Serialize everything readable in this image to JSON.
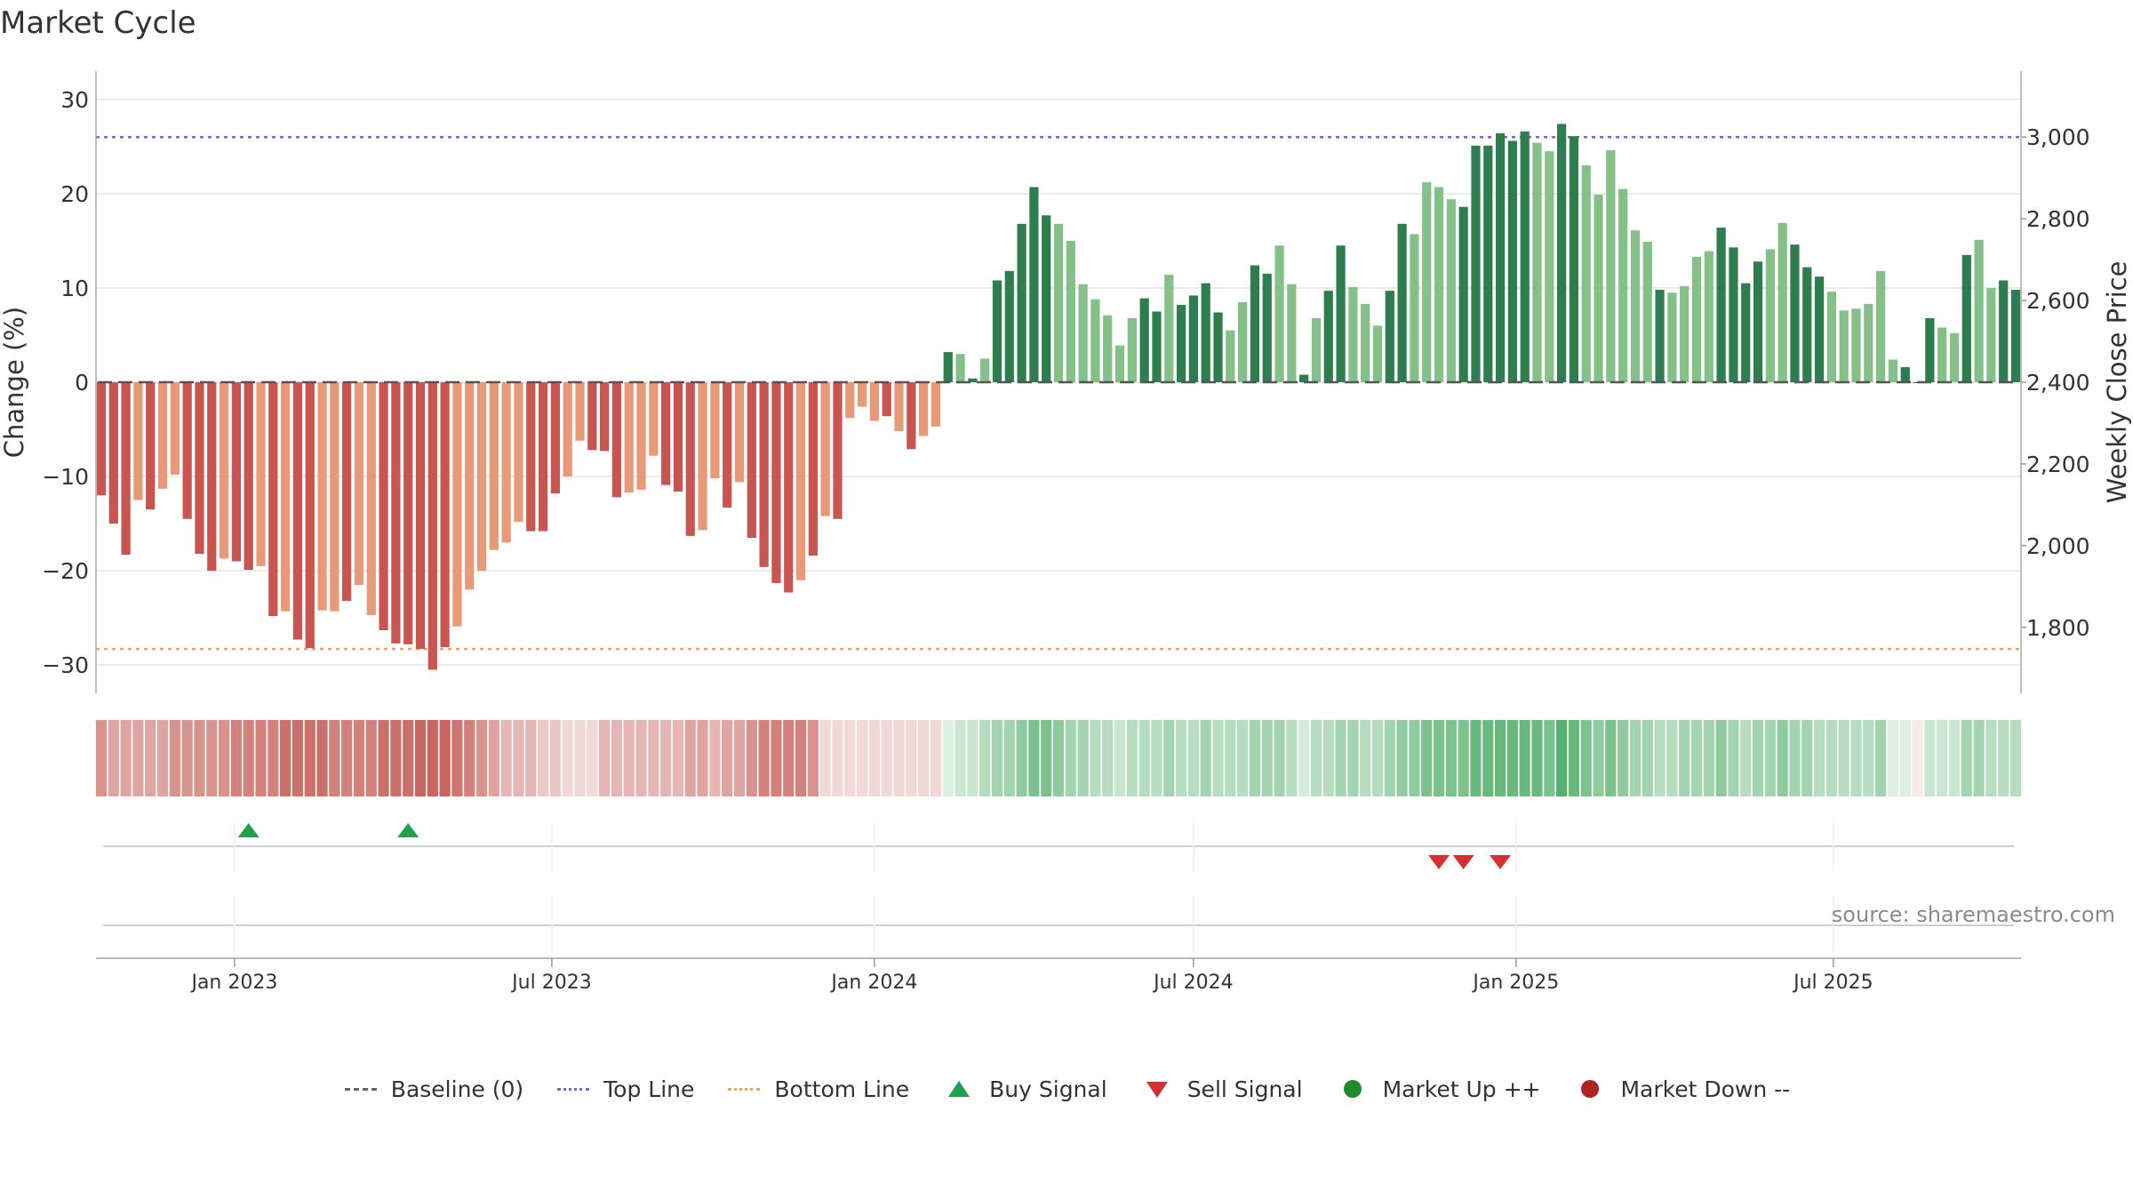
{
  "title": "Market Cycle",
  "source": "source: sharemaestro.com",
  "colors": {
    "red_dark": "#c8554f",
    "red_light": "#e89a78",
    "green_dark": "#2e7d4f",
    "green_light": "#84c088",
    "top_line": "#8e5bd6",
    "bottom_line": "#f0a060",
    "buy": "#1fa04a",
    "sell": "#d63030",
    "market_up": "#1f8a2e",
    "market_down": "#b02323",
    "baseline": "#555555",
    "grid": "#e6e6e6"
  },
  "legend": {
    "baseline": "Baseline (0)",
    "top_line": "Top Line",
    "bottom_line": "Bottom Line",
    "buy": "Buy Signal",
    "sell": "Sell Signal",
    "market_up": "Market Up ++",
    "market_down": "Market Down --"
  },
  "chart_data": {
    "type": "bar",
    "title": "Market Cycle",
    "ylabel": "Change (%)",
    "y2label": "Weekly Close Price",
    "ylim": [
      -33,
      33
    ],
    "yticks": [
      30,
      20,
      10,
      0,
      -10,
      -20,
      -30
    ],
    "ytick_labels": [
      "30",
      "20",
      "10",
      "0",
      "−10",
      "−20",
      "−30"
    ],
    "y2ticks": [
      3000,
      2800,
      2600,
      2400,
      2200,
      2000,
      1800
    ],
    "y2tick_labels": [
      "3,000",
      "2,800",
      "2,600",
      "2,400",
      "2,200",
      "2,000",
      "1,800"
    ],
    "top_line": 26,
    "bottom_line": -28.3,
    "x_start": "2022-10-17",
    "week_days": 7,
    "x_end": "2025-09-01",
    "xticks": [
      "2023-01-01",
      "2023-07-01",
      "2024-01-01",
      "2024-07-01",
      "2025-01-01",
      "2025-07-01"
    ],
    "xtick_labels": [
      "Jan 2023",
      "Jul 2023",
      "Jan 2024",
      "Jul 2024",
      "Jan 2025",
      "Jul 2025"
    ],
    "values": [
      -12,
      -15,
      -18.3,
      -12.5,
      -13.5,
      -11.3,
      -9.8,
      -14.5,
      -18.2,
      -20,
      -18.7,
      -19,
      -19.9,
      -19.5,
      -24.8,
      -24.3,
      -27.3,
      -28.2,
      -24.2,
      -24.3,
      -23.2,
      -21.5,
      -24.7,
      -26.3,
      -27.7,
      -27.8,
      -28.3,
      -30.5,
      -28.1,
      -25.9,
      -22,
      -20,
      -17.8,
      -17,
      -14.8,
      -15.8,
      -15.8,
      -11.8,
      -10,
      -6.2,
      -7.2,
      -7.3,
      -12.2,
      -11.7,
      -11.4,
      -7.8,
      -10.9,
      -11.6,
      -16.3,
      -15.7,
      -10.2,
      -13.3,
      -10.6,
      -16.5,
      -19.6,
      -21.3,
      -22.3,
      -21,
      -18.4,
      -14.2,
      -14.5,
      -3.8,
      -2.6,
      -4.1,
      -3.6,
      -5.2,
      -7.1,
      -5.7,
      -4.7,
      3.2,
      3,
      0.4,
      2.5,
      10.8,
      11.8,
      16.8,
      20.7,
      17.7,
      16.8,
      15,
      10.4,
      8.8,
      7.1,
      3.9,
      6.8,
      8.9,
      7.5,
      11.4,
      8.2,
      9.2,
      10.5,
      7.4,
      5.5,
      8.5,
      12.4,
      11.5,
      14.5,
      10.4,
      0.8,
      6.8,
      9.7,
      14.5,
      10.1,
      8.3,
      6,
      9.7,
      16.8,
      15.7,
      21.2,
      20.7,
      19.4,
      18.6,
      25.1,
      25.1,
      26.4,
      25.6,
      26.6,
      25.4,
      24.5,
      27.4,
      26.1,
      23,
      19.9,
      24.6,
      20.5,
      16.1,
      14.9,
      9.8,
      9.5,
      10.2,
      13.3,
      13.9,
      16.4,
      14.3,
      10.5,
      12.8,
      14.1,
      16.9,
      14.6,
      12.2,
      11.2,
      9.6,
      7.6,
      7.8,
      8.3,
      11.8,
      2.4,
      1.6,
      0,
      6.8,
      5.8,
      5.2,
      13.5,
      15.1,
      10,
      10.8,
      9.8
    ],
    "bar_shades": "DDDLDLLDDDLDDLDLDDLLDLLDDDDDDLLLLLLDDDLLDDDLLLDDDLLDLDDDDLDLDLLLDLDLLDLDLDDDDDLLLLLLLDDLDDDDLLDDLLDLDDLLLDDLLLLDDDDDDLLDDLLLLLLDLLLLDDDDLLDDDLLLLLLDDDLLDLLDDDLL",
    "heatmap": [
      -0.62,
      -0.52,
      -0.52,
      -0.52,
      -0.52,
      -0.52,
      -0.62,
      -0.62,
      -0.62,
      -0.62,
      -0.62,
      -0.72,
      -0.72,
      -0.72,
      -0.72,
      -0.82,
      -0.82,
      -0.82,
      -0.82,
      -0.72,
      -0.72,
      -0.72,
      -0.72,
      -0.82,
      -0.82,
      -0.82,
      -0.88,
      -0.88,
      -0.88,
      -0.78,
      -0.72,
      -0.62,
      -0.52,
      -0.42,
      -0.42,
      -0.42,
      -0.32,
      -0.32,
      -0.22,
      -0.22,
      -0.22,
      -0.42,
      -0.42,
      -0.42,
      -0.42,
      -0.42,
      -0.42,
      -0.42,
      -0.52,
      -0.52,
      -0.42,
      -0.52,
      -0.52,
      -0.62,
      -0.72,
      -0.72,
      -0.72,
      -0.72,
      -0.62,
      -0.22,
      -0.22,
      -0.22,
      -0.22,
      -0.22,
      -0.22,
      -0.22,
      -0.22,
      -0.22,
      -0.22,
      0.18,
      0.28,
      0.28,
      0.38,
      0.48,
      0.48,
      0.58,
      0.68,
      0.68,
      0.58,
      0.48,
      0.48,
      0.38,
      0.38,
      0.28,
      0.38,
      0.38,
      0.38,
      0.48,
      0.38,
      0.38,
      0.48,
      0.38,
      0.38,
      0.38,
      0.48,
      0.48,
      0.48,
      0.38,
      0.22,
      0.38,
      0.38,
      0.48,
      0.48,
      0.38,
      0.38,
      0.48,
      0.58,
      0.58,
      0.68,
      0.68,
      0.68,
      0.68,
      0.78,
      0.78,
      0.78,
      0.78,
      0.78,
      0.78,
      0.68,
      0.88,
      0.78,
      0.68,
      0.58,
      0.68,
      0.58,
      0.48,
      0.48,
      0.38,
      0.38,
      0.48,
      0.48,
      0.48,
      0.58,
      0.48,
      0.38,
      0.48,
      0.48,
      0.58,
      0.48,
      0.48,
      0.38,
      0.38,
      0.38,
      0.38,
      0.38,
      0.48,
      0.18,
      0.18,
      -0.12,
      0.28,
      0.28,
      0.28,
      0.48,
      0.48,
      0.38,
      0.38,
      0.38
    ],
    "buy_signals": [
      "2023-01-09",
      "2023-04-10"
    ],
    "sell_signals": [
      "2024-11-18",
      "2024-12-02",
      "2024-12-23"
    ]
  }
}
